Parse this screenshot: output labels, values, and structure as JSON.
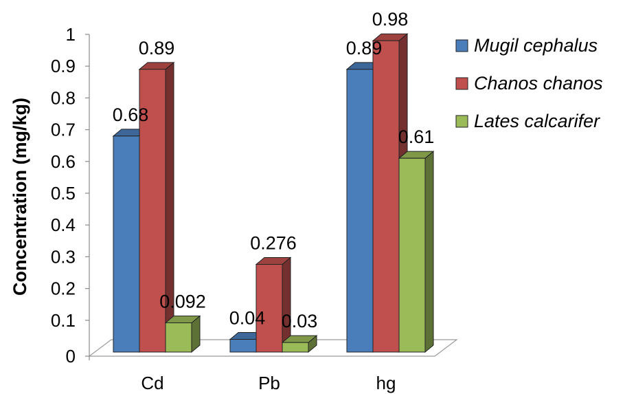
{
  "chart_data": {
    "type": "bar",
    "title": "",
    "xlabel": "",
    "ylabel": "Concentration (mg/kg)",
    "ylim": [
      0,
      1
    ],
    "yticks": [
      "0",
      "0.1",
      "0.2",
      "0.3",
      "0.4",
      "0.5",
      "0.6",
      "0.7",
      "0.8",
      "0.9",
      "1"
    ],
    "categories": [
      "Cd",
      "Pb",
      "hg"
    ],
    "series": [
      {
        "name": "Mugil cephalus",
        "color": "#4a7ebb",
        "values": [
          0.68,
          0.04,
          0.89
        ],
        "labels": [
          "0.68",
          "0.04",
          "0.89"
        ]
      },
      {
        "name": "Chanos chanos",
        "color": "#c0504d",
        "values": [
          0.89,
          0.276,
          0.98
        ],
        "labels": [
          "0.89",
          "0.276",
          "0.98"
        ]
      },
      {
        "name": "Lates calcarifer",
        "color": "#9bbb59",
        "values": [
          0.092,
          0.03,
          0.61
        ],
        "labels": [
          "0.092",
          "0.03",
          "0.61"
        ]
      }
    ],
    "legend": "right",
    "grid": false,
    "style": "3d-clustered-column"
  }
}
